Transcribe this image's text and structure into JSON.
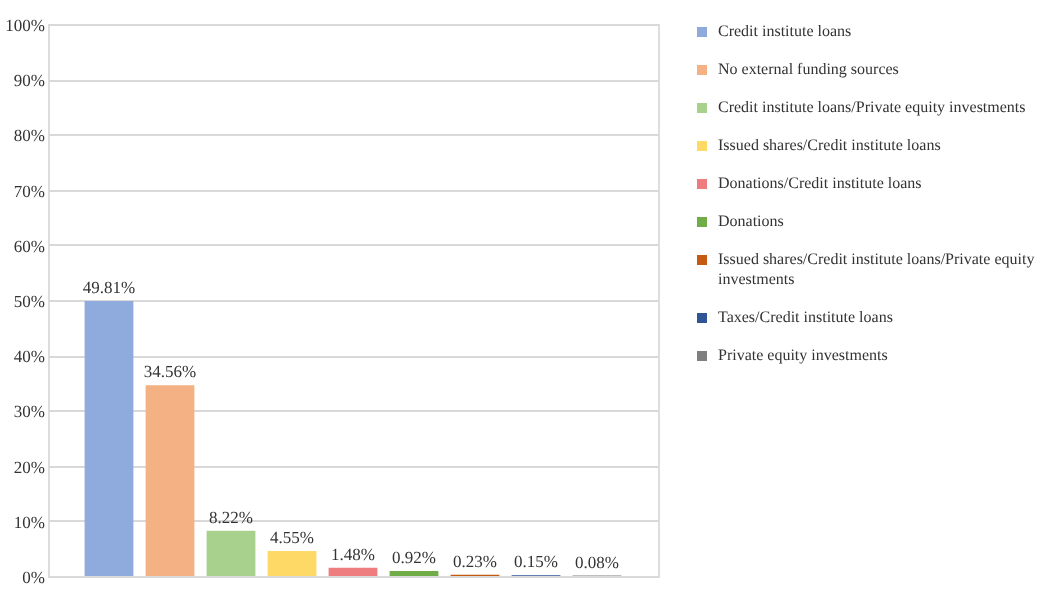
{
  "chart_data": {
    "type": "bar",
    "categories": [
      null
    ],
    "series": [
      {
        "name": "Credit institute loans",
        "color": "#8faadc",
        "values": [
          49.81
        ],
        "value_labels": [
          "49.81%"
        ]
      },
      {
        "name": "No external funding sources",
        "color": "#f4b183",
        "values": [
          34.56
        ],
        "value_labels": [
          "34.56%"
        ]
      },
      {
        "name": "Credit institute loans/Private equity investments",
        "color": "#a9d18e",
        "values": [
          8.22
        ],
        "value_labels": [
          "8.22%"
        ]
      },
      {
        "name": "Issued shares/Credit institute loans",
        "color": "#ffd966",
        "values": [
          4.55
        ],
        "value_labels": [
          "4.55%"
        ]
      },
      {
        "name": "Donations/Credit institute loans",
        "color": "#ee7d7f",
        "values": [
          1.48
        ],
        "value_labels": [
          "1.48%"
        ]
      },
      {
        "name": "Donations",
        "color": "#70ad47",
        "values": [
          0.92
        ],
        "value_labels": [
          "0.92%"
        ]
      },
      {
        "name": "Issued shares/Credit institute loans/Private equity investments",
        "color": "#c55a11",
        "values": [
          0.23
        ],
        "value_labels": [
          "0.23%"
        ]
      },
      {
        "name": "Taxes/Credit institute loans",
        "color": "#2f5597",
        "values": [
          0.15
        ],
        "value_labels": [
          "0.15%"
        ]
      },
      {
        "name": "Private equity investments",
        "color": "#7f7f7f",
        "values": [
          0.08
        ],
        "value_labels": [
          "0.08%"
        ]
      }
    ],
    "ylim": [
      0,
      100
    ],
    "yticks": [
      {
        "value": 0,
        "label": "0%"
      },
      {
        "value": 10,
        "label": "10%"
      },
      {
        "value": 20,
        "label": "20%"
      },
      {
        "value": 30,
        "label": "30%"
      },
      {
        "value": 40,
        "label": "40%"
      },
      {
        "value": 50,
        "label": "50%"
      },
      {
        "value": 60,
        "label": "60%"
      },
      {
        "value": 70,
        "label": "70%"
      },
      {
        "value": 80,
        "label": "80%"
      },
      {
        "value": 90,
        "label": "90%"
      },
      {
        "value": 100,
        "label": "100%"
      }
    ],
    "grid": "y",
    "legend": "right",
    "tick_labels": "y"
  }
}
